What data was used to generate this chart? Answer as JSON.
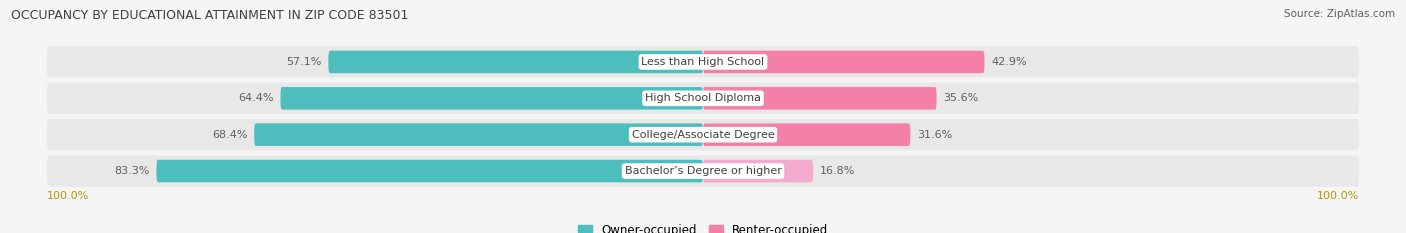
{
  "title": "OCCUPANCY BY EDUCATIONAL ATTAINMENT IN ZIP CODE 83501",
  "source": "Source: ZipAtlas.com",
  "categories": [
    "Less than High School",
    "High School Diploma",
    "College/Associate Degree",
    "Bachelor’s Degree or higher"
  ],
  "owner_pct": [
    57.1,
    64.4,
    68.4,
    83.3
  ],
  "renter_pct": [
    42.9,
    35.6,
    31.6,
    16.8
  ],
  "owner_color": "#4DBDBD",
  "renter_color": "#F47FA8",
  "renter_color_last": "#F4AACC",
  "bg_color": "#f5f5f5",
  "bar_row_bg": "#e8e8e8",
  "title_color": "#404040",
  "label_color": "#606060",
  "owner_text_color": "#ffffff",
  "renter_text_color": "#606060",
  "axis_value_color": "#b8960a",
  "legend_owner": "Owner-occupied",
  "legend_renter": "Renter-occupied",
  "figsize": [
    14.06,
    2.33
  ],
  "dpi": 100
}
